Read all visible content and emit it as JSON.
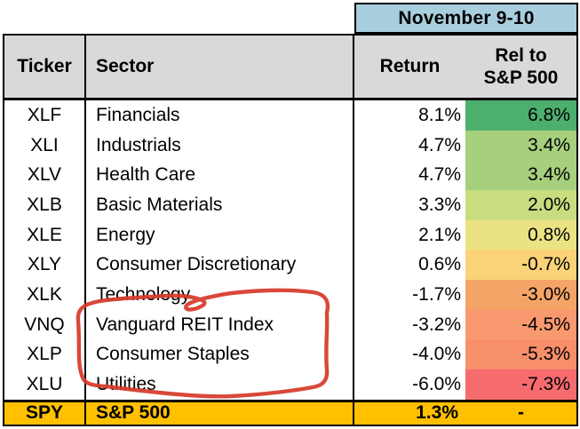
{
  "chart_data": {
    "type": "table",
    "title": "November 9-10",
    "columns": [
      "Ticker",
      "Sector",
      "Return",
      "Rel to S&P 500"
    ],
    "categories": [
      "XLF",
      "XLI",
      "XLV",
      "XLB",
      "XLE",
      "XLY",
      "XLK",
      "VNQ",
      "XLP",
      "XLU",
      "SPY"
    ],
    "series": [
      {
        "name": "Return %",
        "values": [
          8.1,
          4.7,
          4.7,
          3.3,
          2.1,
          0.6,
          -1.7,
          -3.2,
          -4.0,
          -6.0,
          1.3
        ]
      },
      {
        "name": "Rel to S&P 500 %",
        "values": [
          6.8,
          3.4,
          3.4,
          2.0,
          0.8,
          -0.7,
          -3.0,
          -4.5,
          -5.3,
          -7.3,
          null
        ]
      }
    ],
    "legend_position": "none",
    "notes": "Rel-to-S&P column uses green-yellow-red conditional color scale; SPY summary row highlighted gold; red hand-drawn circle around Vanguard REIT Index, Consumer Staples and Utilities sector names"
  },
  "header_band": {
    "label": "November 9-10",
    "bg": "#a9cede"
  },
  "columns": {
    "ticker": "Ticker",
    "sector": "Sector",
    "ret": "Return",
    "rel_line1": "Rel to",
    "rel_line2": "S&P 500",
    "header_bg": "#d9d9d9"
  },
  "rows": [
    {
      "ticker": "XLF",
      "sector": "Financials",
      "ret": "8.1%",
      "rel": "6.8%",
      "rel_bg": "#4daf6e"
    },
    {
      "ticker": "XLI",
      "sector": "Industrials",
      "ret": "4.7%",
      "rel": "3.4%",
      "rel_bg": "#a6d07d"
    },
    {
      "ticker": "XLV",
      "sector": "Health Care",
      "ret": "4.7%",
      "rel": "3.4%",
      "rel_bg": "#a6d07d"
    },
    {
      "ticker": "XLB",
      "sector": "Basic Materials",
      "ret": "3.3%",
      "rel": "2.0%",
      "rel_bg": "#c8dc80"
    },
    {
      "ticker": "XLE",
      "sector": "Energy",
      "ret": "2.1%",
      "rel": "0.8%",
      "rel_bg": "#ebe383"
    },
    {
      "ticker": "XLY",
      "sector": "Consumer Discretionary",
      "ret": "0.6%",
      "rel": "-0.7%",
      "rel_bg": "#fad378"
    },
    {
      "ticker": "XLK",
      "sector": "Technology",
      "ret": "-1.7%",
      "rel": "-3.0%",
      "rel_bg": "#f5a468"
    },
    {
      "ticker": "VNQ",
      "sector": "Vanguard REIT Index",
      "ret": "-3.2%",
      "rel": "-4.5%",
      "rel_bg": "#f8996f"
    },
    {
      "ticker": "XLP",
      "sector": "Consumer Staples",
      "ret": "-4.0%",
      "rel": "-5.3%",
      "rel_bg": "#f78f6b"
    },
    {
      "ticker": "XLU",
      "sector": "Utilities",
      "ret": "-6.0%",
      "rel": "-7.3%",
      "rel_bg": "#f56b6e"
    }
  ],
  "summary_row": {
    "ticker": "SPY",
    "sector": "S&P 500",
    "ret": "1.3%",
    "rel": "-",
    "bg": "#ffc000"
  },
  "annotation": {
    "shape": "hand-drawn-circle",
    "around": "Vanguard REIT Index, Consumer Staples, Utilities",
    "color": "#d63a2a"
  }
}
